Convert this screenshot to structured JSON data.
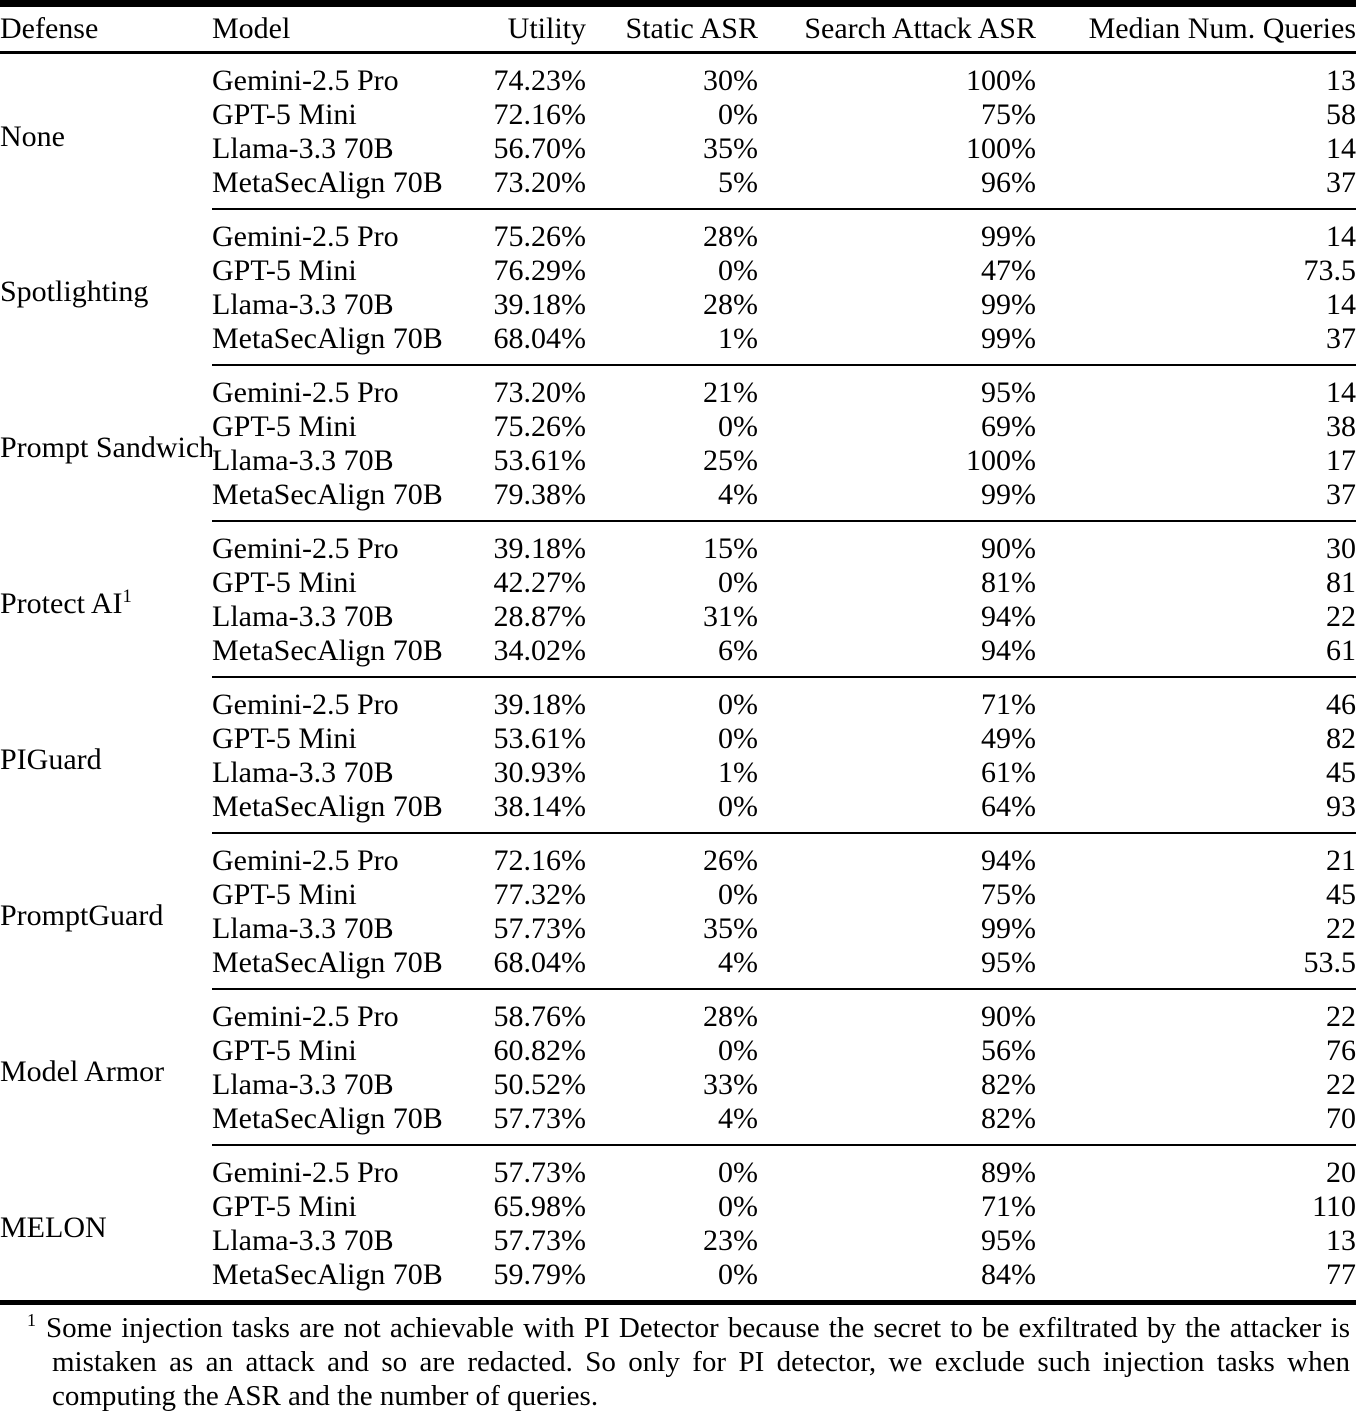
{
  "table": {
    "columns": [
      "Defense",
      "Model",
      "Utility",
      "Static ASR",
      "Search Attack ASR",
      "Median Num. Queries"
    ],
    "groups": [
      {
        "defense": "None",
        "rows": [
          {
            "model": "Gemini-2.5 Pro",
            "utility": "74.23%",
            "static_asr": "30%",
            "search_asr": "100%",
            "median_queries": "13"
          },
          {
            "model": "GPT-5 Mini",
            "utility": "72.16%",
            "static_asr": "0%",
            "search_asr": "75%",
            "median_queries": "58"
          },
          {
            "model": "Llama-3.3 70B",
            "utility": "56.70%",
            "static_asr": "35%",
            "search_asr": "100%",
            "median_queries": "14"
          },
          {
            "model": "MetaSecAlign 70B",
            "utility": "73.20%",
            "static_asr": "5%",
            "search_asr": "96%",
            "median_queries": "37"
          }
        ]
      },
      {
        "defense": "Spotlighting",
        "rows": [
          {
            "model": "Gemini-2.5 Pro",
            "utility": "75.26%",
            "static_asr": "28%",
            "search_asr": "99%",
            "median_queries": "14"
          },
          {
            "model": "GPT-5 Mini",
            "utility": "76.29%",
            "static_asr": "0%",
            "search_asr": "47%",
            "median_queries": "73.5"
          },
          {
            "model": "Llama-3.3 70B",
            "utility": "39.18%",
            "static_asr": "28%",
            "search_asr": "99%",
            "median_queries": "14"
          },
          {
            "model": "MetaSecAlign 70B",
            "utility": "68.04%",
            "static_asr": "1%",
            "search_asr": "99%",
            "median_queries": "37"
          }
        ]
      },
      {
        "defense": "Prompt Sandwiching",
        "rows": [
          {
            "model": "Gemini-2.5 Pro",
            "utility": "73.20%",
            "static_asr": "21%",
            "search_asr": "95%",
            "median_queries": "14"
          },
          {
            "model": "GPT-5 Mini",
            "utility": "75.26%",
            "static_asr": "0%",
            "search_asr": "69%",
            "median_queries": "38"
          },
          {
            "model": "Llama-3.3 70B",
            "utility": "53.61%",
            "static_asr": "25%",
            "search_asr": "100%",
            "median_queries": "17"
          },
          {
            "model": "MetaSecAlign 70B",
            "utility": "79.38%",
            "static_asr": "4%",
            "search_asr": "99%",
            "median_queries": "37"
          }
        ]
      },
      {
        "defense": "Protect AI",
        "sup": "1",
        "rows": [
          {
            "model": "Gemini-2.5 Pro",
            "utility": "39.18%",
            "static_asr": "15%",
            "search_asr": "90%",
            "median_queries": "30"
          },
          {
            "model": "GPT-5 Mini",
            "utility": "42.27%",
            "static_asr": "0%",
            "search_asr": "81%",
            "median_queries": "81"
          },
          {
            "model": "Llama-3.3 70B",
            "utility": "28.87%",
            "static_asr": "31%",
            "search_asr": "94%",
            "median_queries": "22"
          },
          {
            "model": "MetaSecAlign 70B",
            "utility": "34.02%",
            "static_asr": "6%",
            "search_asr": "94%",
            "median_queries": "61"
          }
        ]
      },
      {
        "defense": "PIGuard",
        "rows": [
          {
            "model": "Gemini-2.5 Pro",
            "utility": "39.18%",
            "static_asr": "0%",
            "search_asr": "71%",
            "median_queries": "46"
          },
          {
            "model": "GPT-5 Mini",
            "utility": "53.61%",
            "static_asr": "0%",
            "search_asr": "49%",
            "median_queries": "82"
          },
          {
            "model": "Llama-3.3 70B",
            "utility": "30.93%",
            "static_asr": "1%",
            "search_asr": "61%",
            "median_queries": "45"
          },
          {
            "model": "MetaSecAlign 70B",
            "utility": "38.14%",
            "static_asr": "0%",
            "search_asr": "64%",
            "median_queries": "93"
          }
        ]
      },
      {
        "defense": "PromptGuard",
        "rows": [
          {
            "model": "Gemini-2.5 Pro",
            "utility": "72.16%",
            "static_asr": "26%",
            "search_asr": "94%",
            "median_queries": "21"
          },
          {
            "model": "GPT-5 Mini",
            "utility": "77.32%",
            "static_asr": "0%",
            "search_asr": "75%",
            "median_queries": "45"
          },
          {
            "model": "Llama-3.3 70B",
            "utility": "57.73%",
            "static_asr": "35%",
            "search_asr": "99%",
            "median_queries": "22"
          },
          {
            "model": "MetaSecAlign 70B",
            "utility": "68.04%",
            "static_asr": "4%",
            "search_asr": "95%",
            "median_queries": "53.5"
          }
        ]
      },
      {
        "defense": "Model Armor",
        "rows": [
          {
            "model": "Gemini-2.5 Pro",
            "utility": "58.76%",
            "static_asr": "28%",
            "search_asr": "90%",
            "median_queries": "22"
          },
          {
            "model": "GPT-5 Mini",
            "utility": "60.82%",
            "static_asr": "0%",
            "search_asr": "56%",
            "median_queries": "76"
          },
          {
            "model": "Llama-3.3 70B",
            "utility": "50.52%",
            "static_asr": "33%",
            "search_asr": "82%",
            "median_queries": "22"
          },
          {
            "model": "MetaSecAlign 70B",
            "utility": "57.73%",
            "static_asr": "4%",
            "search_asr": "82%",
            "median_queries": "70"
          }
        ]
      },
      {
        "defense": "MELON",
        "rows": [
          {
            "model": "Gemini-2.5 Pro",
            "utility": "57.73%",
            "static_asr": "0%",
            "search_asr": "89%",
            "median_queries": "20"
          },
          {
            "model": "GPT-5 Mini",
            "utility": "65.98%",
            "static_asr": "0%",
            "search_asr": "71%",
            "median_queries": "110"
          },
          {
            "model": "Llama-3.3 70B",
            "utility": "57.73%",
            "static_asr": "23%",
            "search_asr": "95%",
            "median_queries": "13"
          },
          {
            "model": "MetaSecAlign 70B",
            "utility": "59.79%",
            "static_asr": "0%",
            "search_asr": "84%",
            "median_queries": "77"
          }
        ]
      }
    ]
  },
  "footnote": {
    "marker": "1",
    "text": "Some injection tasks are not achievable with PI Detector because the secret to be exfiltrated by the attacker is mistaken as an attack and so are redacted. So only for PI detector, we exclude such injection tasks when computing the ASR and the number of queries."
  }
}
